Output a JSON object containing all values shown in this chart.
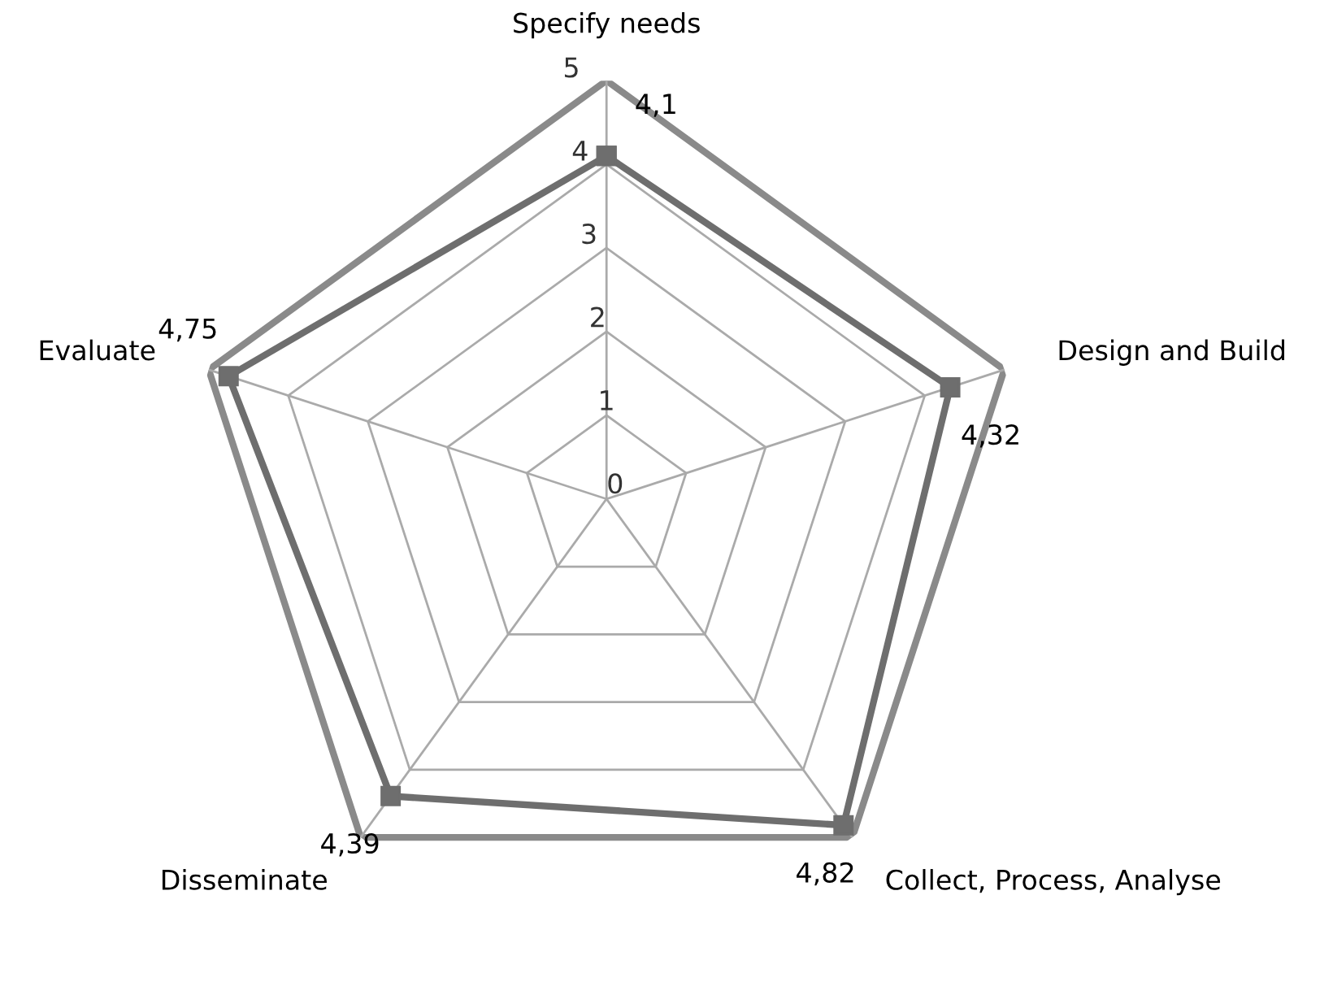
{
  "chart_data": {
    "type": "radar",
    "categories": [
      "Specify needs",
      "Design and Build",
      "Collect, Process, Analyse",
      "Disseminate",
      "Evaluate"
    ],
    "series": [
      {
        "color": "#6e6e6e",
        "values": [
          4.1,
          4.32,
          4.82,
          4.39,
          4.75
        ],
        "value_labels": [
          "4,1",
          "4,32",
          "4,82",
          "4,39",
          "4,75"
        ]
      }
    ],
    "ylim": [
      0,
      5
    ],
    "yticks": [
      0,
      1,
      2,
      3,
      4,
      5
    ],
    "grid": true,
    "marker": "square",
    "line_style": "solid"
  }
}
